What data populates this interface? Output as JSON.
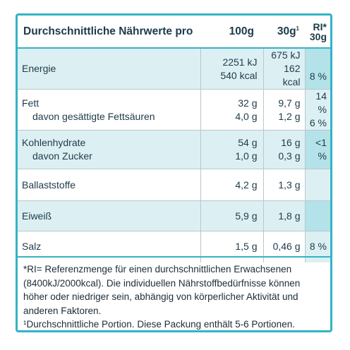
{
  "header": {
    "title": "Durchschnittliche Nährwerte pro",
    "col_100g": "100g",
    "col_30g": "30g",
    "col_30g_sup": "1",
    "col_ri_line1": "RI*",
    "col_ri_line2": "30g"
  },
  "rows": [
    {
      "names": [
        "Energie"
      ],
      "v100": [
        "2251 kJ",
        "540 kcal"
      ],
      "v30": [
        "675 kJ",
        "162 kcal"
      ],
      "ri": [
        "8 %"
      ]
    },
    {
      "names": [
        "Fett",
        "davon gesättigte Fettsäuren"
      ],
      "v100": [
        "32 g",
        "4,0 g"
      ],
      "v30": [
        "9,7 g",
        "1,2 g"
      ],
      "ri": [
        "14 %",
        "6 %"
      ]
    },
    {
      "names": [
        "Kohlenhydrate",
        "davon Zucker"
      ],
      "v100": [
        "54 g",
        "1,0 g"
      ],
      "v30": [
        "16 g",
        "0,3 g"
      ],
      "ri": [
        "",
        "<1 %"
      ]
    },
    {
      "names": [
        "Ballaststoffe"
      ],
      "v100": [
        "4,2 g"
      ],
      "v30": [
        "1,3 g"
      ],
      "ri": [
        ""
      ]
    },
    {
      "names": [
        "Eiweiß"
      ],
      "v100": [
        "5,9 g"
      ],
      "v30": [
        "1,8 g"
      ],
      "ri": [
        ""
      ]
    },
    {
      "names": [
        "Salz"
      ],
      "v100": [
        "1,5 g"
      ],
      "v30": [
        "0,46 g"
      ],
      "ri": [
        "8 %"
      ]
    }
  ],
  "footnote": {
    "line1": "*RI= Referenzmenge für einen durchschnittlichen Erwachsenen (8400kJ/2000kcal). Die individuellen Nährstoffbedürfnisse können höher oder niedriger sein, abhängig von körperlicher Aktivität und anderen Faktoren.",
    "line2": "¹Durchschnittliche Portion. Diese Packung enthält 5-6 Portionen."
  },
  "colors": {
    "border": "#34b3c5",
    "row_light": "#dcf0f3",
    "ri_dark": "#b4e2e9",
    "text": "#1e3a4a"
  }
}
